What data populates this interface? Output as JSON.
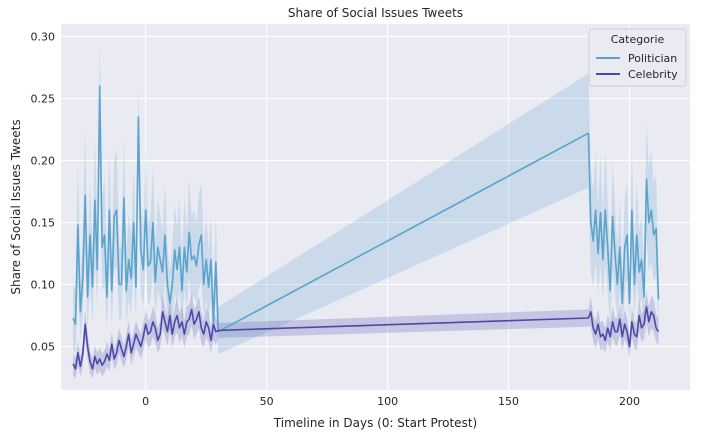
{
  "chart_data": {
    "type": "line",
    "title": "Share of Social Issues Tweets",
    "xlabel": "Timeline in Days (0: Start Protest)",
    "ylabel": "Share of Social Issues Tweets",
    "xlim": [
      -35,
      225
    ],
    "ylim": [
      0.015,
      0.31
    ],
    "x_ticks": [
      0,
      50,
      100,
      150,
      200
    ],
    "y_ticks": [
      0.05,
      0.1,
      0.15,
      0.2,
      0.25,
      0.3
    ],
    "x_tick_labels": [
      "0",
      "50",
      "100",
      "150",
      "200"
    ],
    "y_tick_labels": [
      "0.05",
      "0.10",
      "0.15",
      "0.20",
      "0.25",
      "0.30"
    ],
    "grid": true,
    "background": "#eaeaf2",
    "legend": {
      "title": "Categorie",
      "position": "top-right"
    },
    "series": [
      {
        "name": "Politician",
        "color": "#5ba3cc",
        "x": [
          -30,
          -29,
          -28,
          -27,
          -26,
          -25,
          -24,
          -23,
          -22,
          -21,
          -20,
          -19,
          -18,
          -17,
          -16,
          -15,
          -14,
          -13,
          -12,
          -11,
          -10,
          -9,
          -8,
          -7,
          -6,
          -5,
          -4,
          -3,
          -2,
          -1,
          0,
          1,
          2,
          3,
          4,
          5,
          6,
          7,
          8,
          9,
          10,
          11,
          12,
          13,
          14,
          15,
          16,
          17,
          18,
          19,
          20,
          21,
          22,
          23,
          24,
          25,
          26,
          27,
          28,
          29,
          30,
          183,
          184,
          185,
          186,
          187,
          188,
          189,
          190,
          191,
          192,
          193,
          194,
          195,
          196,
          197,
          198,
          199,
          200,
          201,
          202,
          203,
          204,
          205,
          206,
          207,
          208,
          209,
          210,
          211,
          212
        ],
        "y": [
          0.073,
          0.068,
          0.148,
          0.078,
          0.105,
          0.172,
          0.09,
          0.14,
          0.098,
          0.168,
          0.112,
          0.26,
          0.13,
          0.14,
          0.09,
          0.16,
          0.095,
          0.155,
          0.16,
          0.1,
          0.1,
          0.17,
          0.095,
          0.12,
          0.105,
          0.15,
          0.098,
          0.235,
          0.128,
          0.112,
          0.16,
          0.115,
          0.118,
          0.15,
          0.102,
          0.13,
          0.12,
          0.11,
          0.14,
          0.1,
          0.085,
          0.1,
          0.128,
          0.112,
          0.13,
          0.095,
          0.13,
          0.11,
          0.142,
          0.12,
          0.123,
          0.115,
          0.132,
          0.14,
          0.1,
          0.12,
          0.098,
          0.12,
          0.07,
          0.118,
          0.062,
          0.222,
          0.15,
          0.135,
          0.16,
          0.125,
          0.158,
          0.12,
          0.16,
          0.13,
          0.095,
          0.155,
          0.125,
          0.1,
          0.13,
          0.085,
          0.13,
          0.14,
          0.085,
          0.16,
          0.1,
          0.14,
          0.11,
          0.12,
          0.09,
          0.185,
          0.15,
          0.16,
          0.14,
          0.145,
          0.088
        ],
        "ci_lower": [
          0.048,
          0.045,
          0.1,
          0.055,
          0.075,
          0.125,
          0.065,
          0.1,
          0.07,
          0.12,
          0.08,
          0.2,
          0.095,
          0.1,
          0.065,
          0.115,
          0.068,
          0.112,
          0.115,
          0.072,
          0.072,
          0.125,
          0.068,
          0.088,
          0.076,
          0.11,
          0.071,
          0.18,
          0.094,
          0.082,
          0.118,
          0.084,
          0.087,
          0.11,
          0.075,
          0.096,
          0.088,
          0.081,
          0.104,
          0.073,
          0.062,
          0.073,
          0.094,
          0.082,
          0.096,
          0.069,
          0.096,
          0.081,
          0.105,
          0.088,
          0.091,
          0.085,
          0.097,
          0.103,
          0.073,
          0.088,
          0.072,
          0.088,
          0.05,
          0.087,
          0.044,
          0.178,
          0.11,
          0.098,
          0.118,
          0.092,
          0.116,
          0.088,
          0.118,
          0.095,
          0.069,
          0.114,
          0.092,
          0.073,
          0.095,
          0.062,
          0.095,
          0.103,
          0.062,
          0.118,
          0.073,
          0.103,
          0.081,
          0.088,
          0.066,
          0.138,
          0.11,
          0.118,
          0.103,
          0.107,
          0.064
        ],
        "ci_upper": [
          0.1,
          0.095,
          0.2,
          0.105,
          0.14,
          0.225,
          0.12,
          0.185,
          0.13,
          0.22,
          0.15,
          0.295,
          0.17,
          0.185,
          0.12,
          0.21,
          0.125,
          0.2,
          0.21,
          0.13,
          0.13,
          0.22,
          0.125,
          0.158,
          0.138,
          0.195,
          0.128,
          0.26,
          0.167,
          0.146,
          0.208,
          0.15,
          0.154,
          0.195,
          0.133,
          0.17,
          0.156,
          0.143,
          0.182,
          0.13,
          0.11,
          0.13,
          0.166,
          0.146,
          0.17,
          0.123,
          0.17,
          0.143,
          0.185,
          0.156,
          0.16,
          0.15,
          0.172,
          0.182,
          0.13,
          0.156,
          0.127,
          0.156,
          0.092,
          0.154,
          0.082,
          0.27,
          0.195,
          0.175,
          0.208,
          0.163,
          0.205,
          0.156,
          0.208,
          0.169,
          0.123,
          0.2,
          0.163,
          0.13,
          0.169,
          0.11,
          0.169,
          0.182,
          0.11,
          0.208,
          0.13,
          0.182,
          0.143,
          0.156,
          0.117,
          0.23,
          0.195,
          0.208,
          0.182,
          0.188,
          0.115
        ]
      },
      {
        "name": "Celebrity",
        "color": "#4a4aa8",
        "x": [
          -30,
          -29,
          -28,
          -27,
          -26,
          -25,
          -24,
          -23,
          -22,
          -21,
          -20,
          -19,
          -18,
          -17,
          -16,
          -15,
          -14,
          -13,
          -12,
          -11,
          -10,
          -9,
          -8,
          -7,
          -6,
          -5,
          -4,
          -3,
          -2,
          -1,
          0,
          1,
          2,
          3,
          4,
          5,
          6,
          7,
          8,
          9,
          10,
          11,
          12,
          13,
          14,
          15,
          16,
          17,
          18,
          19,
          20,
          21,
          22,
          23,
          24,
          25,
          26,
          27,
          28,
          29,
          30,
          183,
          184,
          185,
          186,
          187,
          188,
          189,
          190,
          191,
          192,
          193,
          194,
          195,
          196,
          197,
          198,
          199,
          200,
          201,
          202,
          203,
          204,
          205,
          206,
          207,
          208,
          209,
          210,
          211,
          212
        ],
        "y": [
          0.036,
          0.032,
          0.045,
          0.034,
          0.044,
          0.068,
          0.05,
          0.038,
          0.032,
          0.042,
          0.036,
          0.04,
          0.035,
          0.038,
          0.044,
          0.039,
          0.052,
          0.04,
          0.045,
          0.055,
          0.048,
          0.042,
          0.05,
          0.06,
          0.045,
          0.052,
          0.06,
          0.055,
          0.05,
          0.058,
          0.068,
          0.06,
          0.062,
          0.07,
          0.065,
          0.055,
          0.06,
          0.078,
          0.07,
          0.062,
          0.075,
          0.06,
          0.07,
          0.075,
          0.065,
          0.07,
          0.06,
          0.07,
          0.072,
          0.08,
          0.068,
          0.072,
          0.078,
          0.065,
          0.06,
          0.07,
          0.065,
          0.055,
          0.068,
          0.062,
          0.063,
          0.073,
          0.078,
          0.065,
          0.06,
          0.068,
          0.058,
          0.06,
          0.055,
          0.065,
          0.058,
          0.07,
          0.062,
          0.062,
          0.072,
          0.058,
          0.068,
          0.062,
          0.05,
          0.07,
          0.06,
          0.058,
          0.075,
          0.065,
          0.068,
          0.082,
          0.07,
          0.078,
          0.075,
          0.065,
          0.062
        ],
        "ci_lower": [
          0.027,
          0.024,
          0.035,
          0.026,
          0.034,
          0.056,
          0.04,
          0.029,
          0.024,
          0.033,
          0.027,
          0.031,
          0.026,
          0.029,
          0.034,
          0.03,
          0.042,
          0.031,
          0.035,
          0.045,
          0.038,
          0.033,
          0.04,
          0.049,
          0.035,
          0.042,
          0.049,
          0.045,
          0.04,
          0.047,
          0.056,
          0.049,
          0.051,
          0.058,
          0.053,
          0.045,
          0.049,
          0.065,
          0.058,
          0.051,
          0.062,
          0.049,
          0.058,
          0.062,
          0.053,
          0.058,
          0.049,
          0.058,
          0.06,
          0.067,
          0.056,
          0.06,
          0.065,
          0.053,
          0.049,
          0.058,
          0.053,
          0.045,
          0.056,
          0.051,
          0.057,
          0.066,
          0.066,
          0.054,
          0.049,
          0.056,
          0.047,
          0.049,
          0.045,
          0.054,
          0.047,
          0.058,
          0.051,
          0.051,
          0.06,
          0.047,
          0.056,
          0.051,
          0.04,
          0.058,
          0.049,
          0.047,
          0.062,
          0.054,
          0.056,
          0.069,
          0.058,
          0.065,
          0.062,
          0.054,
          0.051
        ],
        "ci_upper": [
          0.045,
          0.04,
          0.055,
          0.042,
          0.054,
          0.08,
          0.06,
          0.047,
          0.04,
          0.051,
          0.045,
          0.049,
          0.044,
          0.047,
          0.054,
          0.048,
          0.062,
          0.049,
          0.055,
          0.065,
          0.058,
          0.051,
          0.06,
          0.071,
          0.055,
          0.062,
          0.071,
          0.065,
          0.06,
          0.069,
          0.08,
          0.071,
          0.073,
          0.082,
          0.077,
          0.065,
          0.071,
          0.091,
          0.082,
          0.073,
          0.088,
          0.071,
          0.082,
          0.088,
          0.077,
          0.082,
          0.071,
          0.082,
          0.084,
          0.093,
          0.08,
          0.084,
          0.091,
          0.077,
          0.071,
          0.082,
          0.077,
          0.065,
          0.08,
          0.073,
          0.069,
          0.08,
          0.09,
          0.076,
          0.071,
          0.08,
          0.069,
          0.071,
          0.065,
          0.076,
          0.069,
          0.082,
          0.073,
          0.073,
          0.084,
          0.069,
          0.08,
          0.073,
          0.06,
          0.082,
          0.071,
          0.069,
          0.088,
          0.076,
          0.08,
          0.095,
          0.082,
          0.091,
          0.088,
          0.076,
          0.073
        ]
      }
    ]
  }
}
